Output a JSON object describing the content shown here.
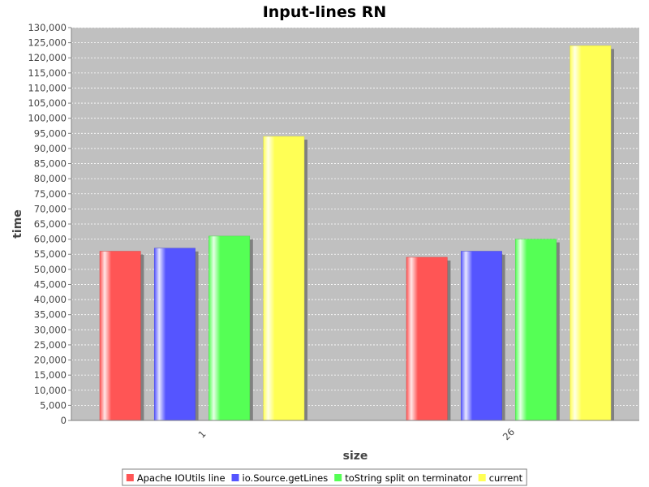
{
  "chart_data": {
    "type": "bar",
    "title": "Input-lines RN",
    "xlabel": "size",
    "ylabel": "time",
    "categories": [
      "1",
      "26"
    ],
    "series": [
      {
        "name": "Apache IOUtils line",
        "color": "#ff5555",
        "values": [
          56000,
          54000
        ]
      },
      {
        "name": "io.Source.getLines",
        "color": "#5555ff",
        "values": [
          57000,
          56000
        ]
      },
      {
        "name": "toString split on terminator",
        "color": "#55ff55",
        "values": [
          61000,
          60000
        ]
      },
      {
        "name": "current",
        "color": "#ffff55",
        "values": [
          94000,
          124000
        ]
      }
    ],
    "ylim": [
      0,
      130000
    ],
    "ytick_step": 5000,
    "grid": true,
    "legend_position": "bottom",
    "plot_background": "#c0c0c0"
  }
}
